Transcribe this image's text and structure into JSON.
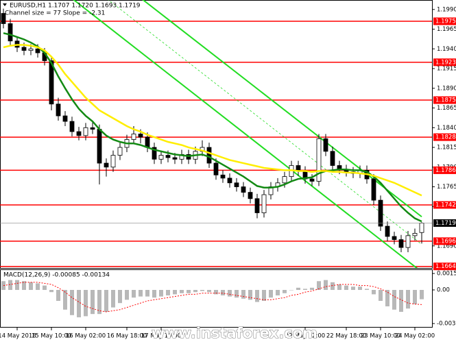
{
  "watermark": "www.instaforex.com",
  "chart_data": [
    {
      "type": "candlestick",
      "title": "EURUSD,H1 1.1707 1.1720 1.1693 1.1719",
      "subtitle": "Channel size = 77 Slope = -2.31",
      "categories": [
        null,
        null,
        "14 May 2018",
        null,
        null,
        null,
        null,
        "15 May 10:00",
        null,
        null,
        null,
        null,
        "16 May 02:00",
        null,
        null,
        null,
        null,
        null,
        "16 May 18:00",
        null,
        null,
        null,
        null,
        "17 May 10:00",
        null,
        null,
        null,
        null,
        null,
        null,
        null,
        null,
        null,
        null,
        null,
        null,
        null,
        null,
        null,
        null,
        null,
        null,
        null,
        null,
        "22 May 02:00",
        null,
        null,
        null,
        null,
        null,
        "22 May 18:00",
        null,
        null,
        null,
        null,
        "23 May 10:00",
        null,
        null,
        null,
        null,
        "24 May 02:00",
        null
      ],
      "ohlc": [
        [
          1.1985,
          1.1991,
          1.1966,
          1.1972
        ],
        [
          1.1972,
          1.1978,
          1.1944,
          1.195
        ],
        [
          1.195,
          1.1956,
          1.1936,
          1.1942
        ],
        [
          1.1942,
          1.1948,
          1.1932,
          1.1938
        ],
        [
          1.1938,
          1.1946,
          1.1932,
          1.194
        ],
        [
          1.194,
          1.1946,
          1.1929,
          1.1935
        ],
        [
          1.1935,
          1.1941,
          1.1919,
          1.1925
        ],
        [
          1.1925,
          1.1931,
          1.1862,
          1.187
        ],
        [
          1.187,
          1.1878,
          1.1849,
          1.1855
        ],
        [
          1.1855,
          1.1861,
          1.1842,
          1.1848
        ],
        [
          1.1848,
          1.1854,
          1.1829,
          1.1835
        ],
        [
          1.1835,
          1.1841,
          1.1824,
          1.183
        ],
        [
          1.183,
          1.1846,
          1.1824,
          1.184
        ],
        [
          1.184,
          1.1848,
          1.1832,
          1.1838
        ],
        [
          1.1838,
          1.1844,
          1.1768,
          1.1795
        ],
        [
          1.1795,
          1.1801,
          1.1778,
          1.179
        ],
        [
          1.179,
          1.1811,
          1.1784,
          1.1805
        ],
        [
          1.1805,
          1.1821,
          1.1799,
          1.1815
        ],
        [
          1.1815,
          1.1831,
          1.1809,
          1.1825
        ],
        [
          1.1825,
          1.1842,
          1.1819,
          1.1832
        ],
        [
          1.1832,
          1.1838,
          1.182,
          1.1828
        ],
        [
          1.1828,
          1.1834,
          1.1809,
          1.1815
        ],
        [
          1.1815,
          1.1821,
          1.1794,
          1.18
        ],
        [
          1.18,
          1.1811,
          1.1794,
          1.1805
        ],
        [
          1.1805,
          1.1811,
          1.1796,
          1.1802
        ],
        [
          1.1802,
          1.1808,
          1.1794,
          1.18
        ],
        [
          1.18,
          1.1812,
          1.1794,
          1.1806
        ],
        [
          1.1806,
          1.1812,
          1.1794,
          1.18
        ],
        [
          1.18,
          1.1816,
          1.1794,
          1.181
        ],
        [
          1.181,
          1.1824,
          1.1804,
          1.1815
        ],
        [
          1.1815,
          1.1821,
          1.1789,
          1.1795
        ],
        [
          1.1795,
          1.1801,
          1.1774,
          1.178
        ],
        [
          1.178,
          1.1786,
          1.177,
          1.1776
        ],
        [
          1.1776,
          1.1782,
          1.1764,
          1.177
        ],
        [
          1.177,
          1.1776,
          1.1759,
          1.1765
        ],
        [
          1.1765,
          1.1771,
          1.1752,
          1.1758
        ],
        [
          1.1758,
          1.1764,
          1.1744,
          1.175
        ],
        [
          1.175,
          1.1756,
          1.1725,
          1.1732
        ],
        [
          1.1732,
          1.1761,
          1.1726,
          1.1755
        ],
        [
          1.1755,
          1.1771,
          1.1749,
          1.1765
        ],
        [
          1.1765,
          1.1776,
          1.1759,
          1.177
        ],
        [
          1.177,
          1.1784,
          1.1764,
          1.1778
        ],
        [
          1.1778,
          1.1798,
          1.1772,
          1.1792
        ],
        [
          1.1792,
          1.1798,
          1.1779,
          1.1785
        ],
        [
          1.1785,
          1.1791,
          1.1769,
          1.1775
        ],
        [
          1.1775,
          1.1781,
          1.1766,
          1.1772
        ],
        [
          1.1772,
          1.1832,
          1.1766,
          1.1826
        ],
        [
          1.1826,
          1.1832,
          1.1804,
          1.181
        ],
        [
          1.181,
          1.1816,
          1.1786,
          1.1792
        ],
        [
          1.1792,
          1.1798,
          1.1781,
          1.1787
        ],
        [
          1.1787,
          1.1793,
          1.1778,
          1.1784
        ],
        [
          1.1784,
          1.179,
          1.1776,
          1.1782
        ],
        [
          1.1782,
          1.1792,
          1.1776,
          1.1786
        ],
        [
          1.1786,
          1.1792,
          1.1769,
          1.1775
        ],
        [
          1.1775,
          1.1781,
          1.1742,
          1.1748
        ],
        [
          1.1748,
          1.1754,
          1.1709,
          1.1715
        ],
        [
          1.1715,
          1.1721,
          1.1696,
          1.1702
        ],
        [
          1.1702,
          1.1708,
          1.1692,
          1.1698
        ],
        [
          1.1698,
          1.1704,
          1.1682,
          1.1688
        ],
        [
          1.1688,
          1.1709,
          1.1682,
          1.1703
        ],
        [
          1.1703,
          1.1712,
          1.1697,
          1.1706
        ],
        [
          1.1707,
          1.172,
          1.1693,
          1.1719
        ]
      ],
      "up_color": "#ffffff",
      "down_color": "#000000",
      "series": [
        {
          "color": "#138a13",
          "values": [
            1.196,
            1.1958,
            1.1955,
            1.1952,
            1.1948,
            1.1943,
            1.1935,
            1.1922,
            1.1905,
            1.189,
            1.1876,
            1.1864,
            1.1855,
            1.1848,
            1.1838,
            1.183,
            1.1825,
            1.1822,
            1.182,
            1.182,
            1.1818,
            1.1815,
            1.1812,
            1.181,
            1.1808,
            1.1806,
            1.1805,
            1.1804,
            1.1805,
            1.1806,
            1.1803,
            1.1798,
            1.1793,
            1.1788,
            1.1783,
            1.1778,
            1.1772,
            1.1766,
            1.1764,
            1.1764,
            1.1765,
            1.1768,
            1.1772,
            1.1775,
            1.1776,
            1.1777,
            1.1782,
            1.1785,
            1.1786,
            1.1787,
            1.1787,
            1.1786,
            1.1786,
            1.1784,
            1.1778,
            1.177,
            1.176,
            1.175,
            1.174,
            1.1732,
            1.1725,
            1.1721
          ]
        },
        {
          "color": "#ffee00",
          "values": [
            1.1942,
            1.1944,
            1.1945,
            1.1945,
            1.1944,
            1.1942,
            1.1938,
            1.193,
            1.192,
            1.1908,
            1.1898,
            1.1888,
            1.1878,
            1.187,
            1.1862,
            1.1857,
            1.1852,
            1.1847,
            1.1842,
            1.1838,
            1.1835,
            1.1831,
            1.1828,
            1.1825,
            1.1822,
            1.182,
            1.1818,
            1.1815,
            1.1813,
            1.1811,
            1.1808,
            1.1805,
            1.1802,
            1.1799,
            1.1797,
            1.1795,
            1.1793,
            1.1791,
            1.1789,
            1.1788,
            1.1787,
            1.1786,
            1.1786,
            1.1785,
            1.1785,
            1.1784,
            1.1785,
            1.1785,
            1.1784,
            1.1784,
            1.1783,
            1.1783,
            1.1782,
            1.1781,
            1.1779,
            1.1776,
            1.1773,
            1.177,
            1.1766,
            1.1762,
            1.1758,
            1.1754
          ]
        }
      ],
      "channel_lines": [
        [
          1.214,
          1.1727
        ],
        [
          1.2106,
          1.1692
        ],
        [
          1.2072,
          1.1657
        ]
      ],
      "channel_dash": [
        false,
        true,
        false
      ],
      "channel_color": "#22dd22",
      "levels": [
        1.1975,
        1.1923,
        1.1875,
        1.1828,
        1.1786,
        1.1742,
        1.1696,
        1.1664
      ],
      "level_color": "#ff0000",
      "last_price": 1.1719,
      "ylim": [
        1.1662,
        1.2002
      ],
      "yticks": [
        {
          "value": 1.199,
          "label": "1.1990"
        },
        1.1965,
        {
          "value": 1.194,
          "label": "1.1940"
        },
        1.1915,
        {
          "value": 1.189,
          "label": "1.1890"
        },
        1.1865,
        {
          "value": 1.184,
          "label": "1.1840"
        },
        1.1815,
        {
          "value": 1.179,
          "label": "1.1790"
        },
        1.1765,
        {
          "value": 1.174,
          "label": "1.1740"
        },
        {
          "value": 1.169,
          "label": "1.1690"
        }
      ]
    },
    {
      "type": "macd",
      "title": "MACD(12,26,9) -0.00085 -0.00134",
      "color": "#b8b8b8",
      "values": [
        0.0008,
        0.0009,
        0.0009,
        0.0008,
        0.0007,
        0.0006,
        0.0004,
        -0.0002,
        -0.001,
        -0.0018,
        -0.0023,
        -0.0025,
        -0.0024,
        -0.0022,
        -0.0022,
        -0.002,
        -0.0016,
        -0.0012,
        -0.0009,
        -0.0007,
        -0.0006,
        -0.0006,
        -0.0007,
        -0.0006,
        -0.0005,
        -0.0004,
        -0.0003,
        -0.0003,
        -0.0002,
        -0.0001,
        -0.0002,
        -0.0004,
        -0.0005,
        -0.0006,
        -0.0007,
        -0.0008,
        -0.0009,
        -0.0011,
        -0.001,
        -0.0007,
        -0.0005,
        -0.0003,
        0.0,
        0.0002,
        0.0001,
        0.0002,
        0.0008,
        0.0009,
        0.0007,
        0.0005,
        0.0004,
        0.0003,
        0.0003,
        0.0001,
        -0.0004,
        -0.001,
        -0.0015,
        -0.0018,
        -0.002,
        -0.0017,
        -0.0013,
        -0.00085
      ],
      "signal": {
        "color": "#ff0000",
        "values": [
          0.0004,
          0.0005,
          0.0006,
          0.0007,
          0.0007,
          0.0007,
          0.0006,
          0.0005,
          0.0002,
          -0.0002,
          -0.0007,
          -0.0011,
          -0.0015,
          -0.0017,
          -0.0019,
          -0.002,
          -0.0019,
          -0.0018,
          -0.0016,
          -0.0014,
          -0.0012,
          -0.001,
          -0.0009,
          -0.0008,
          -0.0007,
          -0.0006,
          -0.0005,
          -0.0004,
          -0.0004,
          -0.0003,
          -0.0003,
          -0.0003,
          -0.0003,
          -0.0004,
          -0.0005,
          -0.0006,
          -0.0007,
          -0.0008,
          -0.0009,
          -0.0009,
          -0.0008,
          -0.0007,
          -0.0005,
          -0.0004,
          -0.0002,
          -0.0001,
          0.0001,
          0.0003,
          0.0004,
          0.0005,
          0.0005,
          0.0005,
          0.0004,
          0.0004,
          0.0003,
          0.0001,
          -0.0002,
          -0.0006,
          -0.0009,
          -0.0012,
          -0.0013,
          -0.00134
        ]
      },
      "ylim": [
        -0.00344,
        0.00194
      ],
      "yticks": [
        0.0015,
        {
          "value": 0,
          "label": "0.00"
        },
        -0.00307
      ]
    }
  ]
}
